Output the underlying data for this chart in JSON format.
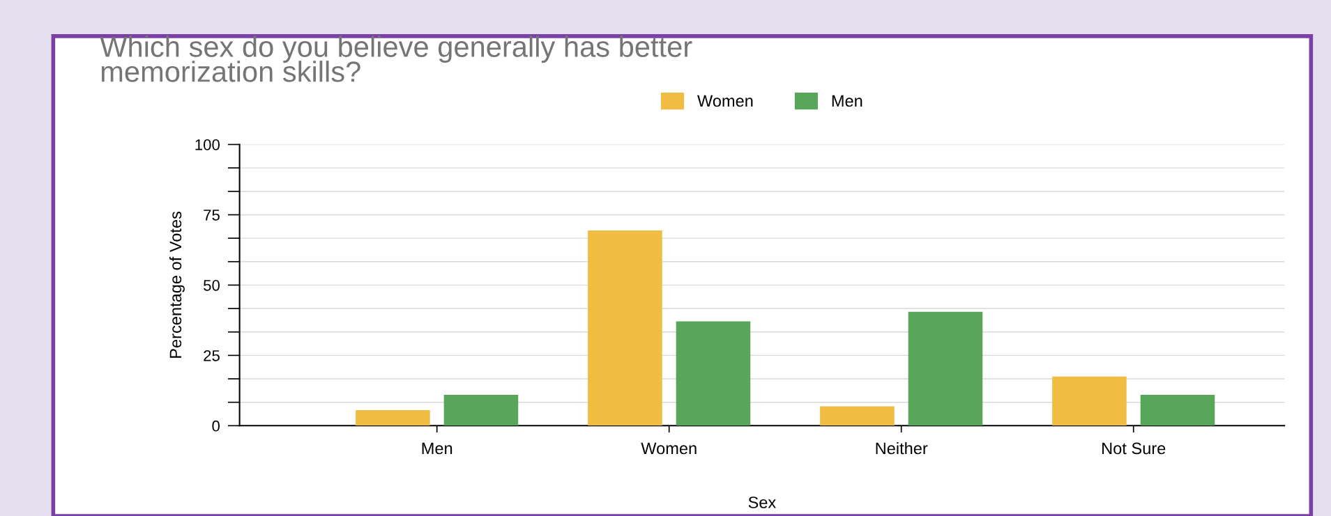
{
  "chart_data": {
    "type": "bar",
    "title": "Which sex do you believe generally has better\nmemorization skills?",
    "xlabel": "Sex",
    "ylabel": "Percentage of Votes",
    "categories": [
      "Men",
      "Women",
      "Neither",
      "Not Sure"
    ],
    "series": [
      {
        "name": "Women",
        "color": "#f0bc42",
        "values": [
          5.5,
          69.4,
          6.9,
          17.5
        ]
      },
      {
        "name": "Men",
        "color": "#57a65a",
        "values": [
          11,
          37.1,
          40.5,
          11
        ]
      }
    ],
    "ylim": [
      0,
      100
    ],
    "yticks": [
      0,
      {
        "value": 8.33,
        "label": null
      },
      {
        "value": 16.67,
        "label": null
      },
      25,
      {
        "value": 33.33,
        "label": null
      },
      {
        "value": 41.67,
        "label": null
      },
      50,
      {
        "value": 58.33,
        "label": null
      },
      {
        "value": 66.67,
        "label": null
      },
      75,
      {
        "value": 83.33,
        "label": null
      },
      {
        "value": 91.67,
        "label": null
      },
      100
    ],
    "grid": "y",
    "legend": "top"
  }
}
